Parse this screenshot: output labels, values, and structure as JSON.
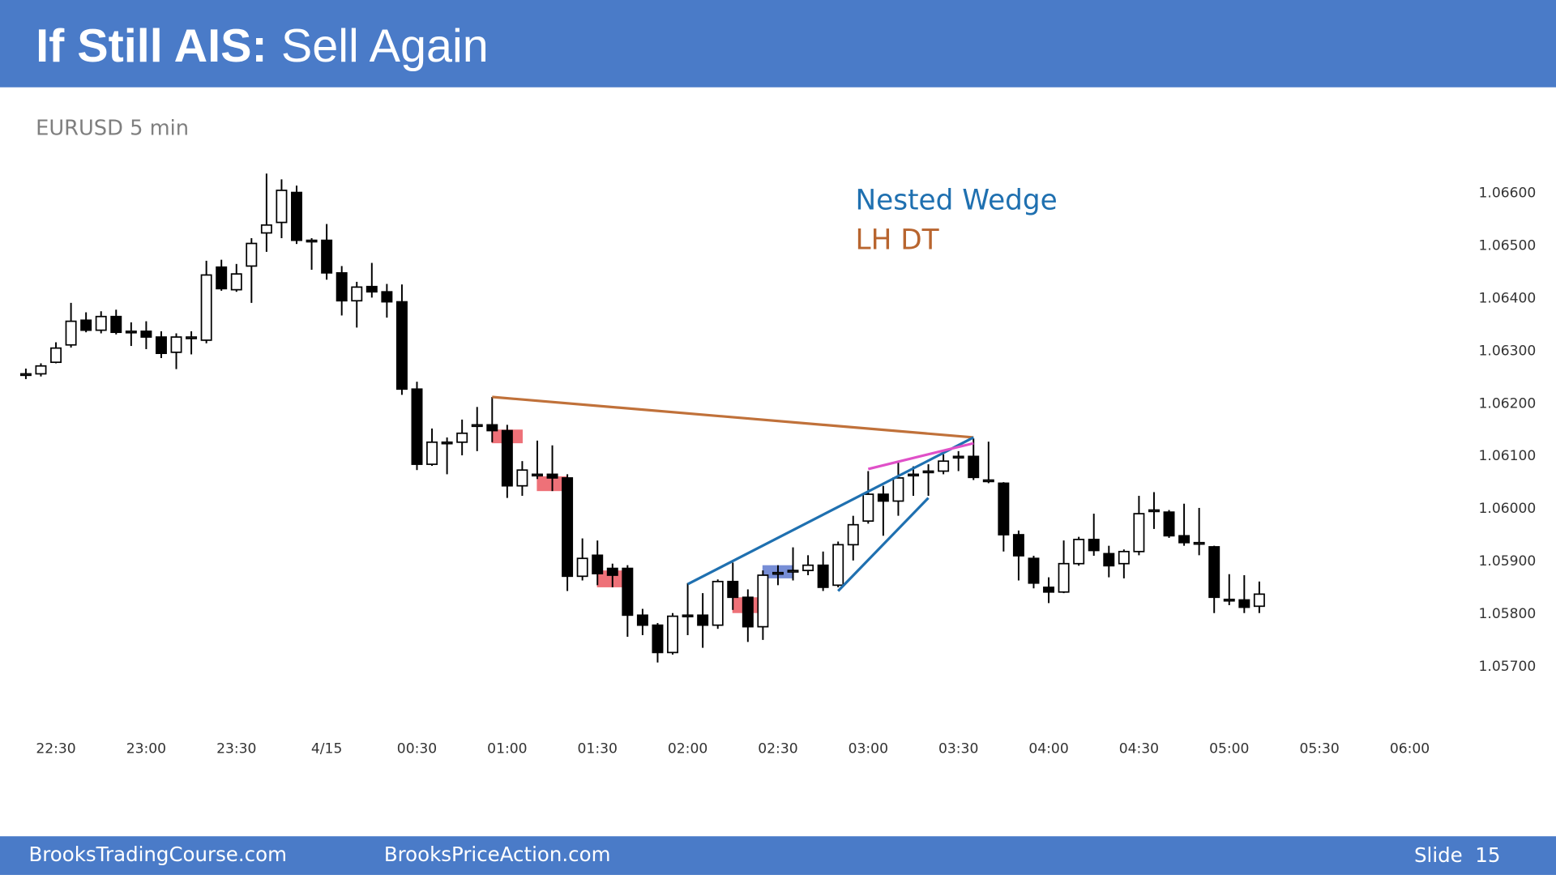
{
  "header": {
    "title_bold": "If Still AIS:",
    "title_rest": "Sell Again"
  },
  "footer": {
    "left": "BrooksTradingCourse.com",
    "center": "BrooksPriceAction.com",
    "right": "Slide  15"
  },
  "chart_data": {
    "type": "candlestick",
    "subtitle": "EURUSD 5 min",
    "up_color": "#ffffff",
    "down_color": "#000000",
    "x": [
      -100,
      -95,
      -90,
      -85,
      -80,
      -75,
      -70,
      -65,
      -60,
      -55,
      -50,
      -45,
      -40,
      -35,
      -30,
      -25,
      -20,
      -15,
      -10,
      -5,
      0,
      5,
      10,
      15,
      20,
      25,
      30,
      35,
      40,
      45,
      50,
      55,
      60,
      65,
      70,
      75,
      80,
      85,
      90,
      95,
      100,
      105,
      110,
      115,
      120,
      125,
      130,
      135,
      140,
      145,
      150,
      155,
      160,
      165,
      170,
      175,
      180,
      185,
      190,
      195,
      200,
      205,
      210,
      215,
      220,
      225,
      230,
      235,
      240,
      245,
      250,
      255,
      260,
      265,
      270,
      275,
      280,
      285,
      290,
      295,
      300,
      305,
      310
    ],
    "open": [
      1.06255,
      1.06255,
      1.06277,
      1.0631,
      1.06357,
      1.06338,
      1.06364,
      1.06336,
      1.06336,
      1.06325,
      1.06296,
      1.06324,
      1.06319,
      1.06458,
      1.06415,
      1.0646,
      1.06523,
      1.06543,
      1.066,
      1.06509,
      1.06509,
      1.06447,
      1.06394,
      1.06421,
      1.06411,
      1.06392,
      1.06226,
      1.06083,
      1.06125,
      1.06125,
      1.06158,
      1.06158,
      1.06147,
      1.06042,
      1.06064,
      1.06064,
      1.06057,
      1.0587,
      1.0591,
      1.05885,
      1.05885,
      1.05796,
      1.05777,
      1.05725,
      1.05796,
      1.05796,
      1.05777,
      1.0586,
      1.0583,
      1.05774,
      1.05877,
      1.05881,
      1.05881,
      1.05891,
      1.05853,
      1.0593,
      1.05975,
      1.06026,
      1.06013,
      1.06064,
      1.0607,
      1.0607,
      1.06098,
      1.06098,
      1.06053,
      1.06047,
      1.05949,
      1.05904,
      1.05849,
      1.0584,
      1.05894,
      1.0594,
      1.05913,
      1.05894,
      1.05917,
      1.05996,
      1.05992,
      1.05947,
      1.05934,
      1.05926,
      1.05826,
      1.05825,
      1.05813
    ],
    "high": [
      1.06265,
      1.06275,
      1.06315,
      1.0639,
      1.06372,
      1.06374,
      1.06377,
      1.06353,
      1.06355,
      1.06336,
      1.06332,
      1.06336,
      1.0647,
      1.06472,
      1.06464,
      1.06513,
      1.06636,
      1.06625,
      1.06613,
      1.06513,
      1.0654,
      1.0646,
      1.0643,
      1.06466,
      1.06426,
      1.06425,
      1.0624,
      1.06151,
      1.06134,
      1.06168,
      1.06192,
      1.06211,
      1.06158,
      1.06089,
      1.06128,
      1.06119,
      1.06064,
      1.05942,
      1.05938,
      1.05894,
      1.05891,
      1.05808,
      1.05781,
      1.058,
      1.05857,
      1.05838,
      1.05864,
      1.05896,
      1.05845,
      1.05881,
      1.05891,
      1.05925,
      1.0591,
      1.05917,
      1.05936,
      1.05985,
      1.0607,
      1.06042,
      1.06089,
      1.06079,
      1.06083,
      1.06102,
      1.06108,
      1.06132,
      1.06126,
      1.06049,
      1.05957,
      1.05909,
      1.05868,
      1.05938,
      1.05945,
      1.05989,
      1.05928,
      1.05921,
      1.06023,
      1.0603,
      1.05996,
      1.06008,
      1.06,
      1.05928,
      1.05874,
      1.05872,
      1.0586
    ],
    "low": [
      1.06245,
      1.0625,
      1.06275,
      1.06305,
      1.06334,
      1.06332,
      1.0633,
      1.06308,
      1.06302,
      1.06285,
      1.06264,
      1.06292,
      1.06313,
      1.06413,
      1.06411,
      1.0639,
      1.06487,
      1.06513,
      1.06502,
      1.06453,
      1.06434,
      1.06366,
      1.06343,
      1.064,
      1.06362,
      1.06215,
      1.06072,
      1.0608,
      1.06064,
      1.061,
      1.06108,
      1.06125,
      1.06019,
      1.06023,
      1.06055,
      1.06032,
      1.05842,
      1.05862,
      1.05853,
      1.05849,
      1.05755,
      1.05758,
      1.05706,
      1.05721,
      1.05758,
      1.05734,
      1.0577,
      1.05806,
      1.05745,
      1.05749,
      1.05853,
      1.05862,
      1.05872,
      1.05842,
      1.05849,
      1.059,
      1.0597,
      1.05947,
      1.05985,
      1.06023,
      1.06023,
      1.06064,
      1.0607,
      1.06053,
      1.06047,
      1.05917,
      1.05862,
      1.05847,
      1.05819,
      1.05838,
      1.0589,
      1.05909,
      1.05868,
      1.05866,
      1.0591,
      1.0596,
      1.05943,
      1.05928,
      1.0591,
      1.058,
      1.05815,
      1.058,
      1.058
    ],
    "close": [
      1.06255,
      1.0627,
      1.06304,
      1.06355,
      1.06338,
      1.06364,
      1.06334,
      1.06336,
      1.06325,
      1.06294,
      1.06325,
      1.06325,
      1.06443,
      1.06417,
      1.06445,
      1.06503,
      1.06538,
      1.06604,
      1.06509,
      1.06509,
      1.06447,
      1.06394,
      1.0642,
      1.06411,
      1.06392,
      1.06226,
      1.06083,
      1.06125,
      1.06125,
      1.06142,
      1.06158,
      1.06147,
      1.06042,
      1.06072,
      1.06064,
      1.06057,
      1.0587,
      1.05904,
      1.05875,
      1.05872,
      1.05796,
      1.05777,
      1.05725,
      1.05794,
      1.05796,
      1.05777,
      1.0586,
      1.0583,
      1.05774,
      1.05872,
      1.05877,
      1.05881,
      1.05891,
      1.05849,
      1.0593,
      1.05968,
      1.06026,
      1.06013,
      1.06057,
      1.06064,
      1.0607,
      1.06089,
      1.06098,
      1.06058,
      1.06053,
      1.05949,
      1.05909,
      1.05857,
      1.0584,
      1.05894,
      1.0594,
      1.05919,
      1.0589,
      1.05917,
      1.05989,
      1.05996,
      1.05947,
      1.05934,
      1.05934,
      1.0583,
      1.05826,
      1.05811,
      1.05836
    ],
    "xlim": [
      -102,
      373
    ],
    "xticks": [
      {
        "value": -90,
        "label": "22:30"
      },
      {
        "value": -60,
        "label": "23:00"
      },
      {
        "value": -30,
        "label": "23:30"
      },
      {
        "value": 0,
        "label": "4/15"
      },
      {
        "value": 30,
        "label": "00:30"
      },
      {
        "value": 60,
        "label": "01:00"
      },
      {
        "value": 90,
        "label": "01:30"
      },
      {
        "value": 120,
        "label": "02:00"
      },
      {
        "value": 150,
        "label": "02:30"
      },
      {
        "value": 180,
        "label": "03:00"
      },
      {
        "value": 210,
        "label": "03:30"
      },
      {
        "value": 240,
        "label": "04:00"
      },
      {
        "value": 270,
        "label": "04:30"
      },
      {
        "value": 300,
        "label": "05:00"
      },
      {
        "value": 330,
        "label": "05:30"
      },
      {
        "value": 360,
        "label": "06:00"
      }
    ],
    "ylim": [
      1.0565,
      1.0665
    ],
    "yticks": [
      {
        "value": 1.066,
        "label": "1.06600"
      },
      {
        "value": 1.065,
        "label": "1.06500"
      },
      {
        "value": 1.064,
        "label": "1.06400"
      },
      {
        "value": 1.063,
        "label": "1.06300"
      },
      {
        "value": 1.062,
        "label": "1.06200"
      },
      {
        "value": 1.061,
        "label": "1.06100"
      },
      {
        "value": 1.06,
        "label": "1.06000"
      },
      {
        "value": 1.059,
        "label": "1.05900"
      },
      {
        "value": 1.058,
        "label": "1.05800"
      },
      {
        "value": 1.057,
        "label": "1.05700"
      }
    ],
    "highlights": [
      {
        "x": 60,
        "y": [
          1.06149,
          1.06123
        ],
        "color": "#e8414b"
      },
      {
        "x": 75,
        "y": [
          1.0606,
          1.06032
        ],
        "color": "#e8414b"
      },
      {
        "x": 95,
        "y": [
          1.05881,
          1.05849
        ],
        "color": "#e8414b"
      },
      {
        "x": 140,
        "y": [
          1.0583,
          1.058
        ],
        "color": "#e8414b"
      },
      {
        "x": 150,
        "y": [
          1.05891,
          1.05866
        ],
        "color": "#4a68c8"
      }
    ],
    "lines": [
      {
        "color": "#c0713a",
        "x": [
          55,
          215
        ],
        "y": [
          1.06211,
          1.06134
        ]
      },
      {
        "color": "#1f70b0",
        "x": [
          120,
          215
        ],
        "y": [
          1.05855,
          1.06134
        ]
      },
      {
        "color": "#1f70b0",
        "x": [
          170,
          200
        ],
        "y": [
          1.05842,
          1.06019
        ]
      },
      {
        "color": "#e050c8",
        "x": [
          180,
          215
        ],
        "y": [
          1.06074,
          1.06123
        ]
      }
    ],
    "annotations": [
      {
        "text": "Nested Wedge",
        "color": "#1f70b0"
      },
      {
        "text": "LH DT",
        "color": "#b8652f"
      }
    ]
  }
}
